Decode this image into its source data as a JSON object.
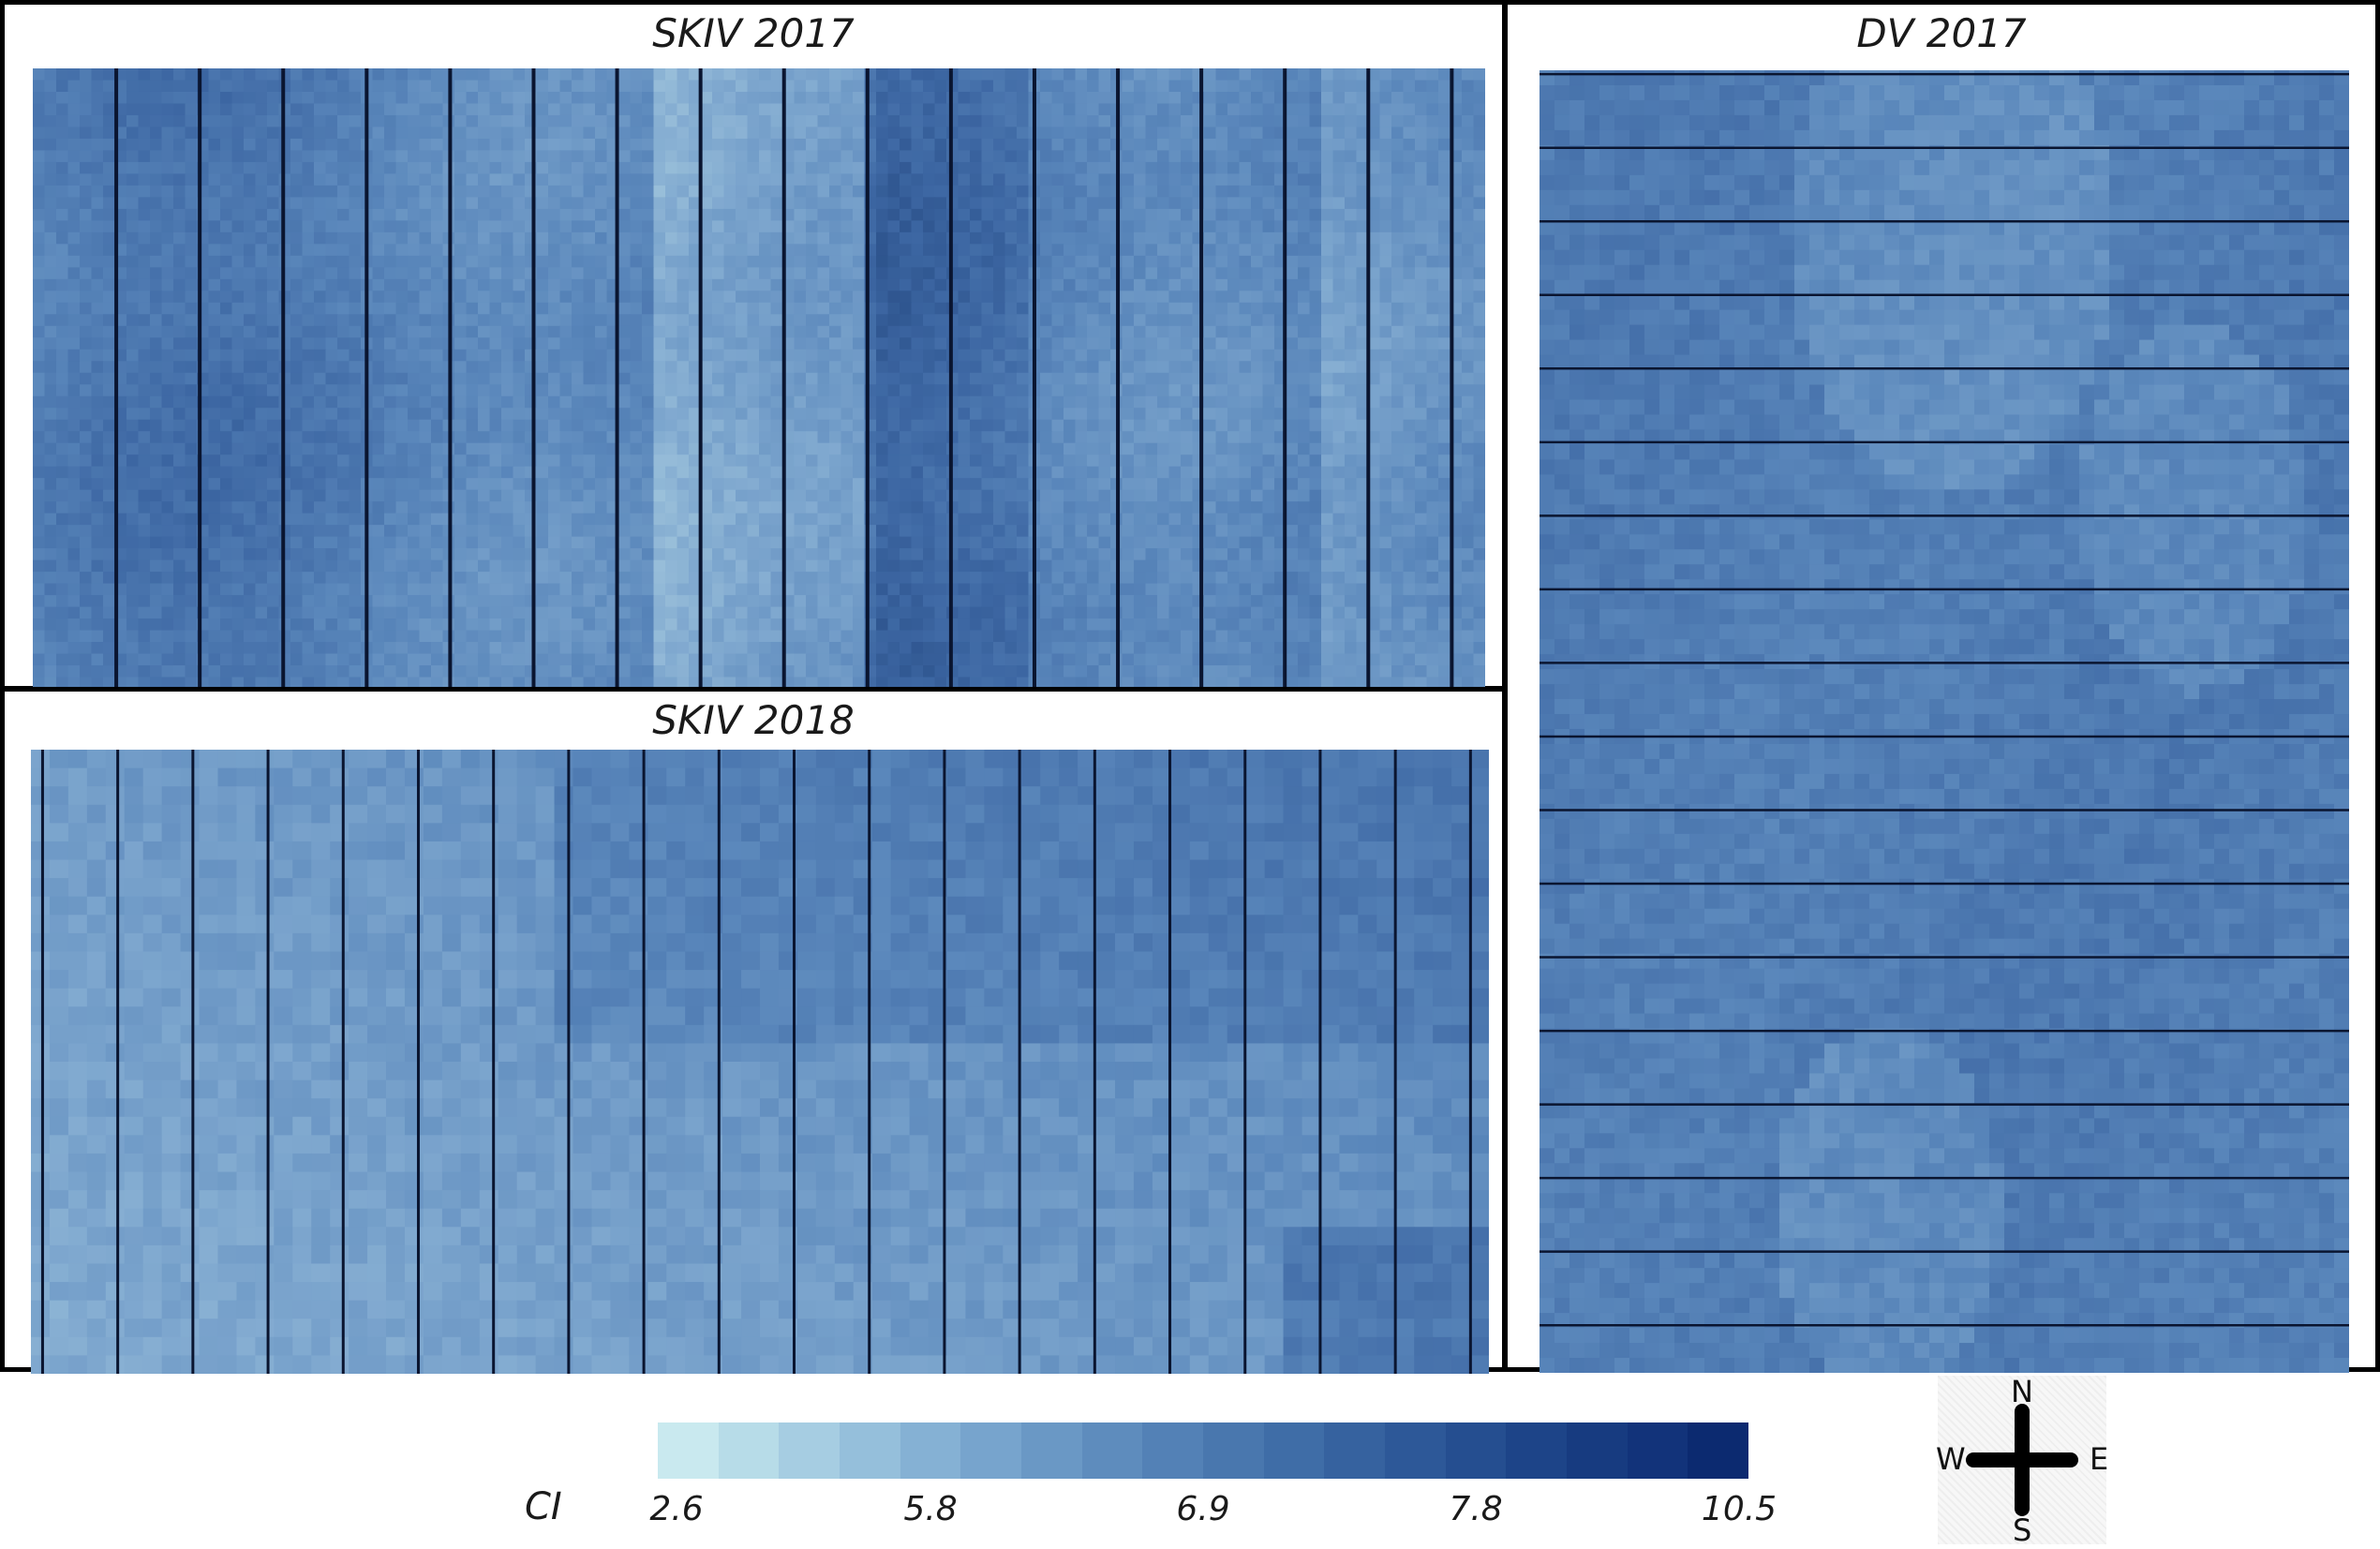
{
  "panels": {
    "skiv2017": {
      "title": "SKIV 2017"
    },
    "skiv2018": {
      "title": "SKIV 2018"
    },
    "dv2017": {
      "title": "DV 2017"
    }
  },
  "legend": {
    "label": "CI",
    "ticks": [
      {
        "text": "2.6",
        "pos": 0.0
      },
      {
        "text": "5.8",
        "pos": 0.25
      },
      {
        "text": "6.9",
        "pos": 0.5
      },
      {
        "text": "7.8",
        "pos": 0.75
      },
      {
        "text": "10.5",
        "pos": 1.0
      }
    ],
    "colors": [
      "#c9e9ef",
      "#b7dce8",
      "#a6cde2",
      "#95bfdb",
      "#85b1d4",
      "#77a4cd",
      "#6a98c5",
      "#5e8cbd",
      "#5381b6",
      "#4977ae",
      "#3f6da7",
      "#36629f",
      "#2d5898",
      "#254e90",
      "#1d4488",
      "#173b80",
      "#12337a",
      "#0c2a70"
    ]
  },
  "compass": {
    "n": "N",
    "s": "S",
    "e": "E",
    "w": "W"
  }
}
